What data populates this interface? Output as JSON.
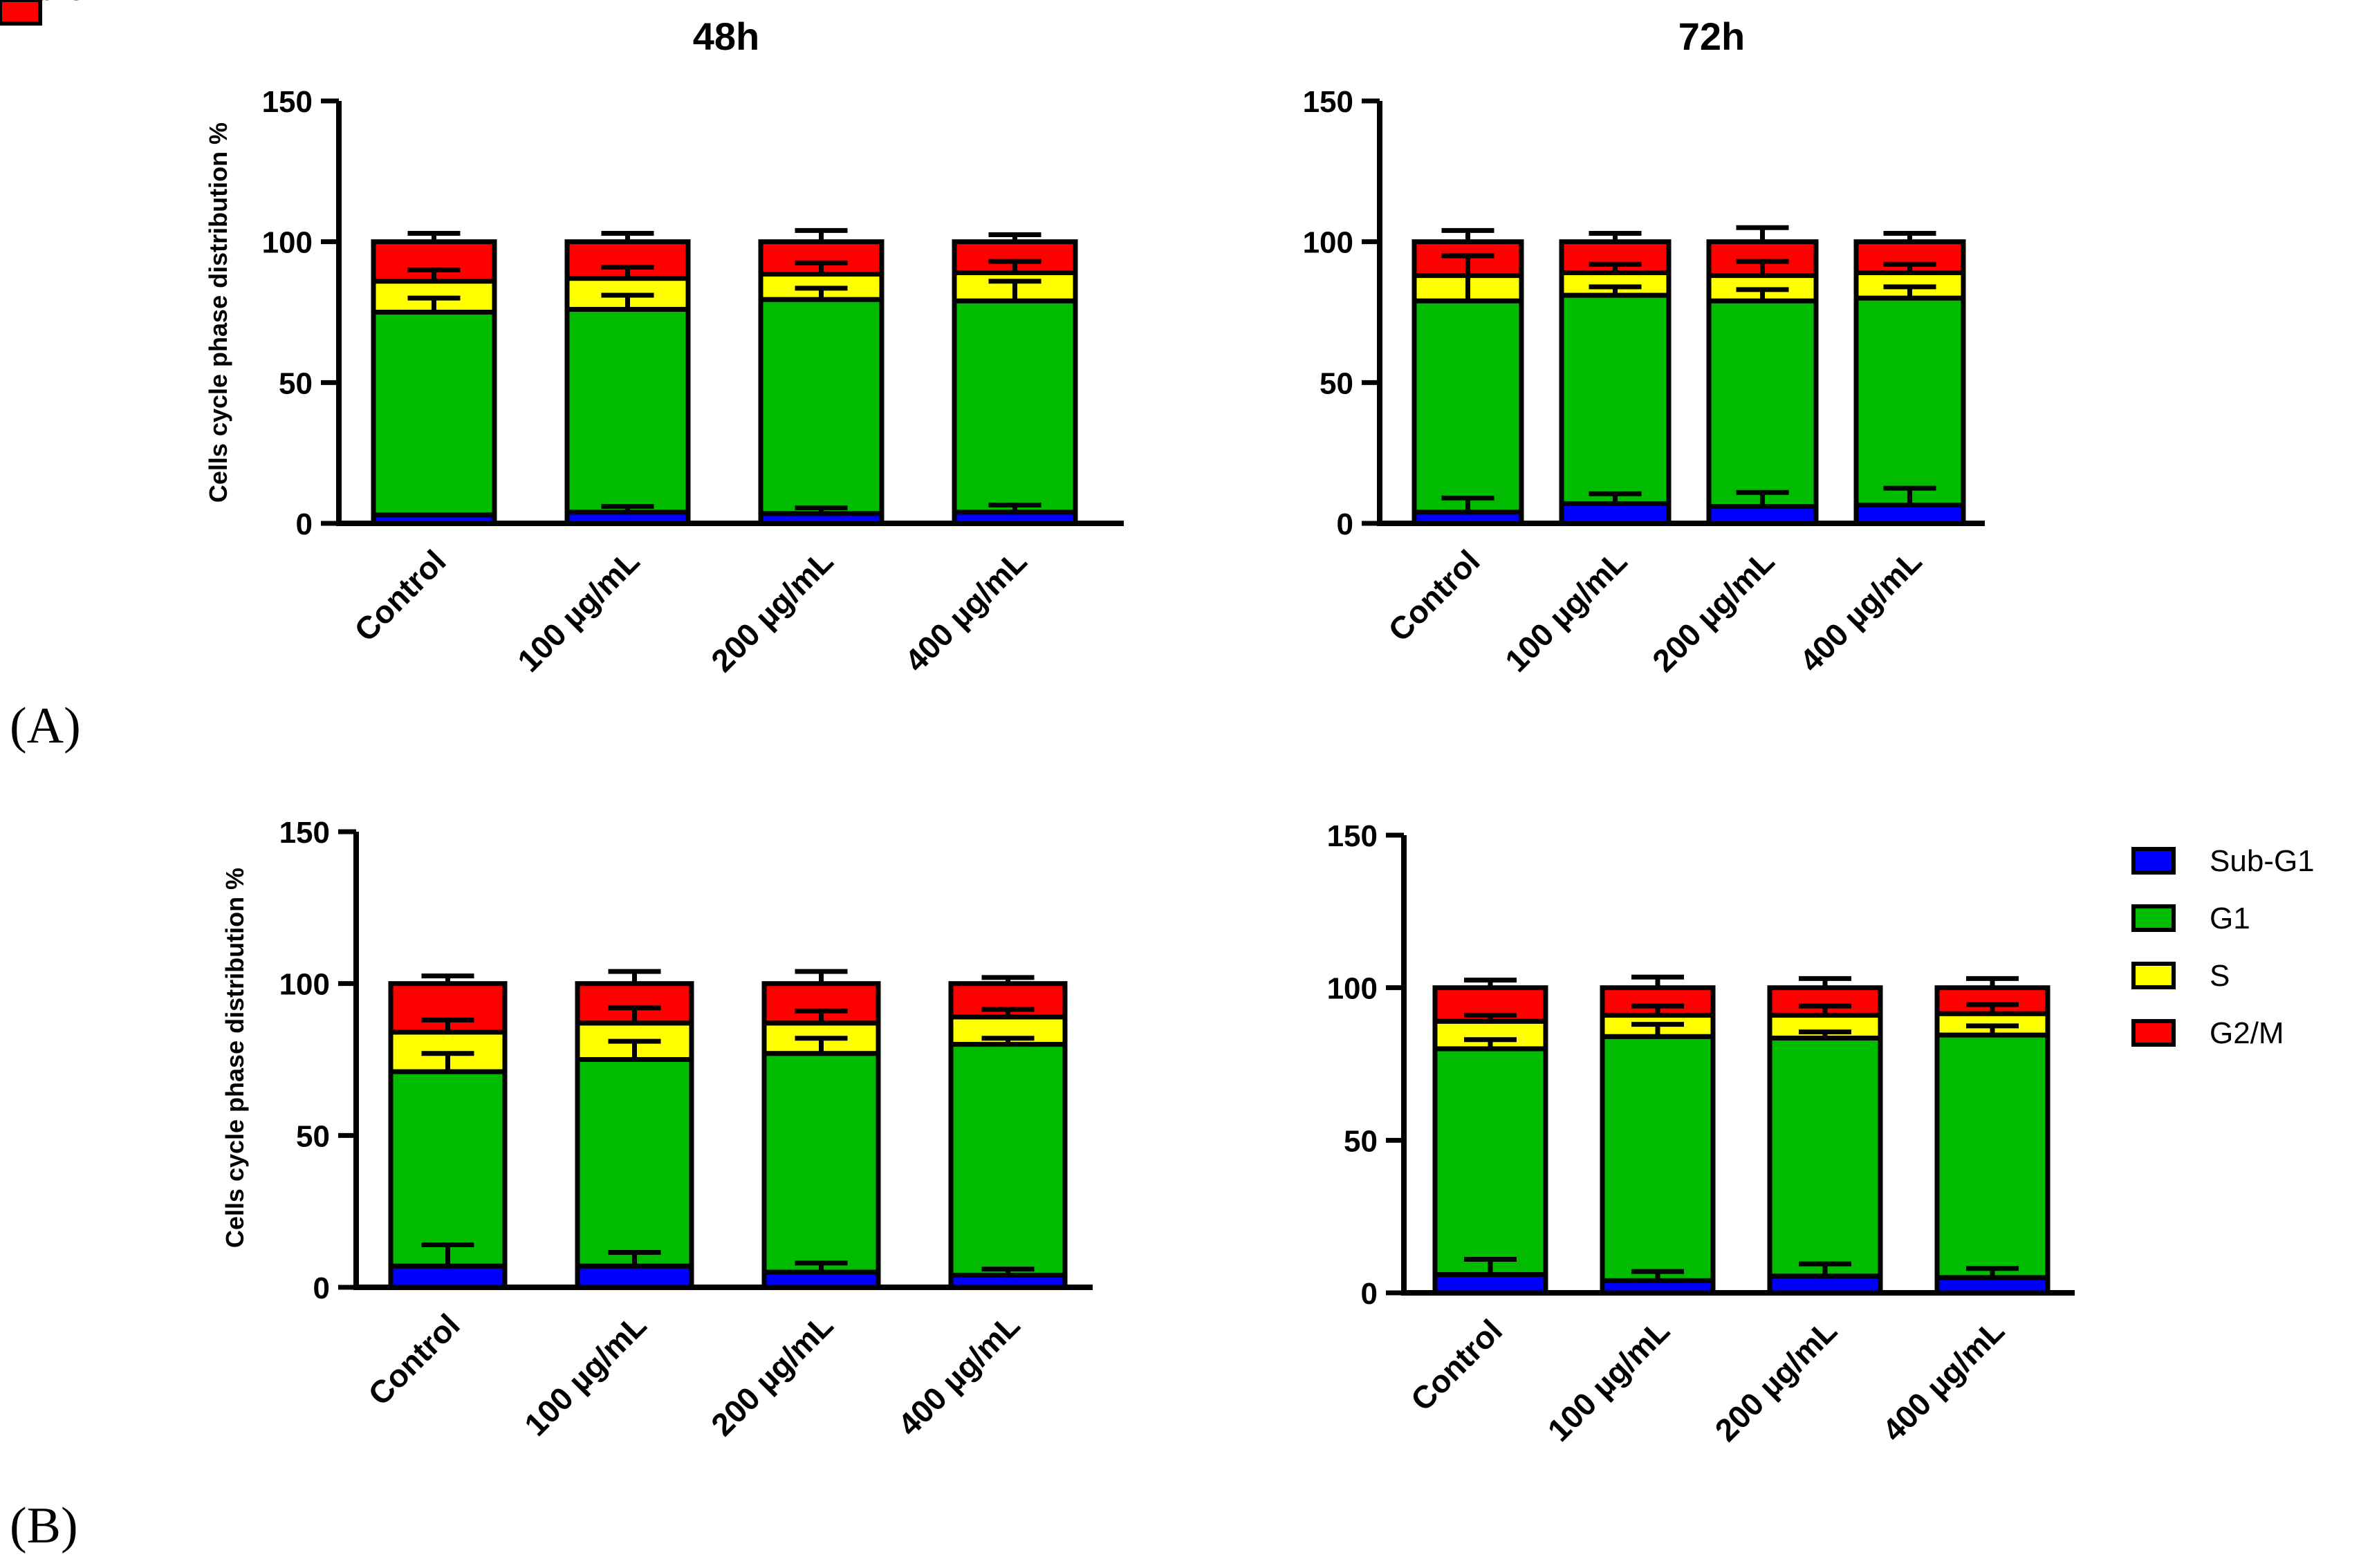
{
  "figure": {
    "panel_labels": [
      "(A)",
      "(B)"
    ],
    "legend_entries": [
      "Sub-G1",
      "G1",
      "S",
      "G2/M"
    ]
  },
  "colors": {
    "sub_g1": "#0000ff",
    "g1": "#00bb00",
    "s": "#ffff00",
    "g2m": "#ff0000",
    "outline": "#000000"
  },
  "chart_data": [
    {
      "id": "A-48h",
      "type": "bar",
      "stacked": true,
      "title": "48h",
      "xlabel": "",
      "ylabel": "Cells cycle phase distribution %",
      "ylim": [
        0,
        150
      ],
      "yticks": [
        "0",
        "50",
        "100",
        "150"
      ],
      "categories": [
        "Control",
        "100 µg/mL",
        "200 µg/mL",
        "400 µg/mL"
      ],
      "series": [
        {
          "name": "Sub-G1",
          "values": [
            3,
            4,
            3.5,
            4
          ],
          "errors": [
            0,
            2,
            2,
            2.5
          ]
        },
        {
          "name": "G1",
          "values": [
            72,
            72,
            76,
            75
          ],
          "errors": [
            5,
            5,
            4,
            7
          ]
        },
        {
          "name": "S",
          "values": [
            11,
            11,
            9,
            10
          ],
          "errors": [
            4,
            4,
            4,
            4
          ]
        },
        {
          "name": "G2/M",
          "values": [
            14,
            13,
            11.5,
            11
          ],
          "errors": [
            3,
            3,
            4,
            2.5
          ]
        }
      ]
    },
    {
      "id": "A-72h",
      "type": "bar",
      "stacked": true,
      "title": "72h",
      "xlabel": "",
      "ylabel": "",
      "ylim": [
        0,
        150
      ],
      "yticks": [
        "0",
        "50",
        "100",
        "150"
      ],
      "categories": [
        "Control",
        "100 µg/mL",
        "200 µg/mL",
        "400 µg/mL"
      ],
      "series": [
        {
          "name": "Sub-G1",
          "values": [
            4,
            7,
            6,
            6.5
          ],
          "errors": [
            5,
            3.5,
            5,
            6
          ]
        },
        {
          "name": "G1",
          "values": [
            75,
            74,
            73,
            73.5
          ],
          "errors": [
            9,
            3,
            4,
            4
          ]
        },
        {
          "name": "S",
          "values": [
            9,
            8,
            9,
            9
          ],
          "errors": [
            7,
            3,
            5,
            3
          ]
        },
        {
          "name": "G2/M",
          "values": [
            12,
            11,
            12,
            11
          ],
          "errors": [
            4,
            3,
            5,
            3
          ]
        }
      ],
      "legend": "right"
    },
    {
      "id": "B-48h",
      "type": "bar",
      "stacked": true,
      "title": "",
      "xlabel": "",
      "ylabel": "Cells cycle phase distribution %",
      "ylim": [
        0,
        150
      ],
      "yticks": [
        "0",
        "50",
        "100",
        "150"
      ],
      "categories": [
        "Control",
        "100 µg/mL",
        "200 µg/mL",
        "400 µg/mL"
      ],
      "series": [
        {
          "name": "Sub-G1",
          "values": [
            7,
            7,
            5,
            4
          ],
          "errors": [
            7,
            4.5,
            3,
            2
          ]
        },
        {
          "name": "G1",
          "values": [
            64,
            68,
            72,
            76
          ],
          "errors": [
            6,
            6,
            5,
            2
          ]
        },
        {
          "name": "S",
          "values": [
            13,
            12,
            10,
            9
          ],
          "errors": [
            4,
            5,
            4,
            2.5
          ]
        },
        {
          "name": "G2/M",
          "values": [
            16,
            13,
            13,
            11
          ],
          "errors": [
            2.5,
            4,
            4,
            2
          ]
        }
      ]
    },
    {
      "id": "B-72h",
      "type": "bar",
      "stacked": true,
      "title": "",
      "xlabel": "",
      "ylabel": "",
      "ylim": [
        0,
        150
      ],
      "yticks": [
        "0",
        "50",
        "100",
        "150"
      ],
      "categories": [
        "Control",
        "100 µg/mL",
        "200 µg/mL",
        "400 µg/mL"
      ],
      "series": [
        {
          "name": "Sub-G1",
          "values": [
            6,
            4,
            5.5,
            5
          ],
          "errors": [
            5,
            3,
            4,
            3
          ]
        },
        {
          "name": "G1",
          "values": [
            74,
            80,
            78,
            79.5
          ],
          "errors": [
            3,
            4,
            2,
            3
          ]
        },
        {
          "name": "S",
          "values": [
            9,
            7,
            7.5,
            7
          ],
          "errors": [
            2,
            3,
            3,
            3
          ]
        },
        {
          "name": "G2/M",
          "values": [
            11,
            9,
            9,
            8.5
          ],
          "errors": [
            2.5,
            3.5,
            3,
            3
          ]
        }
      ],
      "legend": "right"
    }
  ]
}
